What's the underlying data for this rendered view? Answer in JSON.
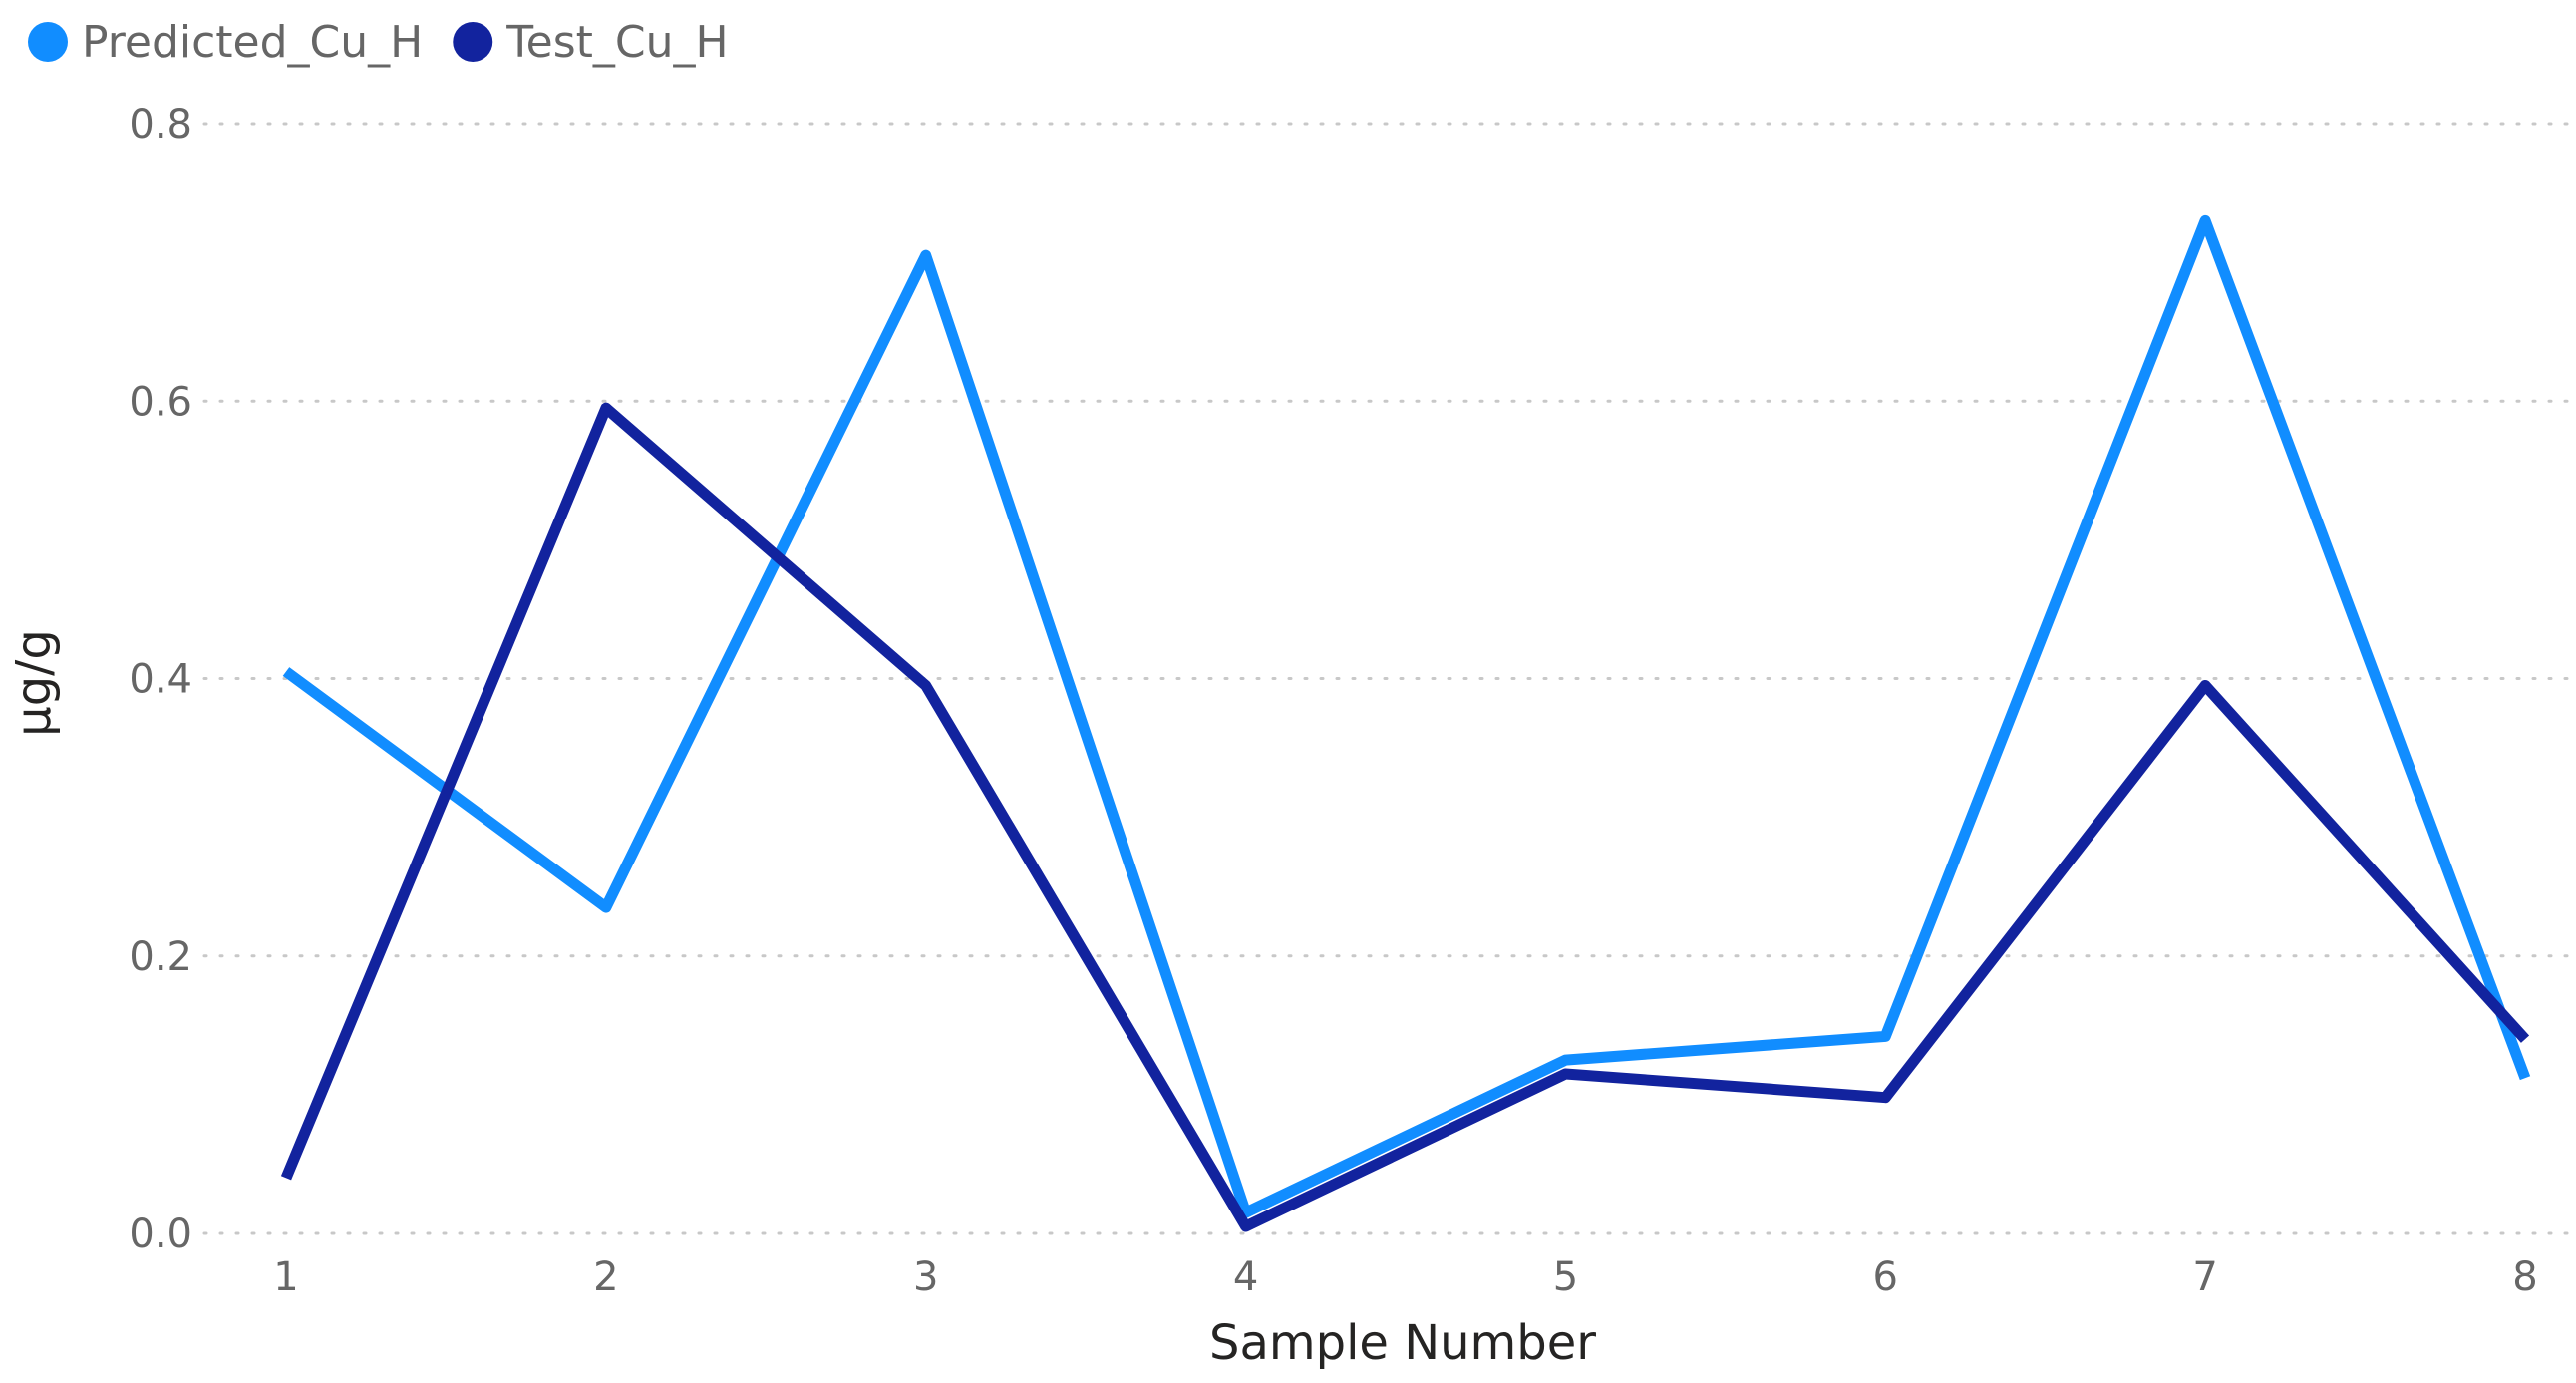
{
  "chart_data": {
    "type": "line",
    "xlabel": "Sample Number",
    "ylabel": "µg/g",
    "x": [
      1,
      2,
      3,
      4,
      5,
      6,
      7,
      8
    ],
    "x_tick_labels": [
      "1",
      "2",
      "3",
      "4",
      "5",
      "6",
      "7",
      "8"
    ],
    "ylim": [
      0,
      0.8
    ],
    "y_ticks": [
      0.0,
      0.2,
      0.4,
      0.6,
      0.8
    ],
    "y_tick_labels": [
      "0.0",
      "0.2",
      "0.4",
      "0.6",
      "0.8"
    ],
    "grid": true,
    "legend_position": "top-left",
    "series": [
      {
        "name": "Predicted_Cu_H",
        "color": "#118DFF",
        "values": [
          0.405,
          0.235,
          0.705,
          0.015,
          0.125,
          0.142,
          0.73,
          0.112
        ]
      },
      {
        "name": "Test_Cu_H",
        "color": "#12239E",
        "values": [
          0.04,
          0.595,
          0.395,
          0.005,
          0.115,
          0.098,
          0.395,
          0.14
        ]
      }
    ]
  }
}
